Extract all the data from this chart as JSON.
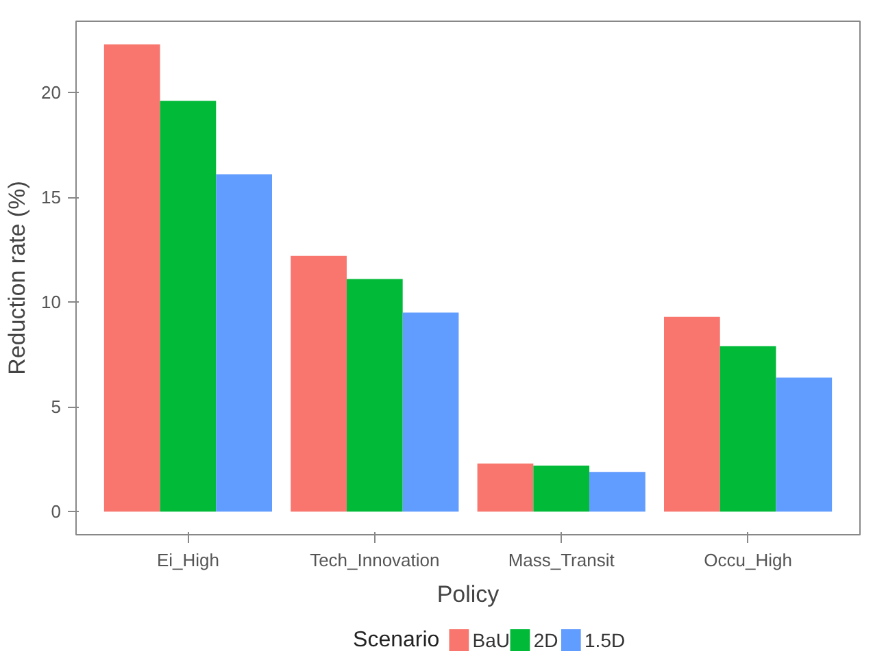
{
  "chart_data": {
    "type": "bar",
    "xlabel": "Policy",
    "ylabel": "Reduction rate (%)",
    "legend_title": "Scenario",
    "categories": [
      "Ei_High",
      "Tech_Innovation",
      "Mass_Transit",
      "Occu_High"
    ],
    "series": [
      {
        "name": "BaU",
        "color": "#f8766d",
        "values": [
          22.3,
          12.2,
          2.3,
          9.3
        ]
      },
      {
        "name": "2D",
        "color": "#00ba38",
        "values": [
          19.6,
          11.1,
          2.2,
          7.9
        ]
      },
      {
        "name": "1.5D",
        "color": "#619cff",
        "values": [
          16.1,
          9.5,
          1.9,
          6.4
        ]
      }
    ],
    "ylim": [
      -1.1,
      23.4
    ],
    "yticks": [
      0,
      5,
      10,
      15,
      20
    ],
    "grid": false,
    "legend": "bottom"
  }
}
